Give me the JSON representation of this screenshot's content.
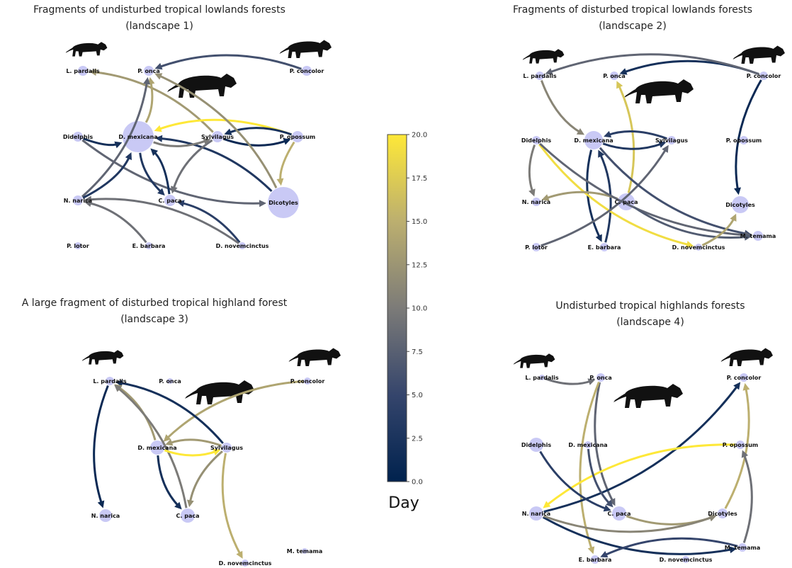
{
  "panels": [
    {
      "title": [
        "Fragments of undisturbed tropical lowlands forests",
        "(landscape 1)"
      ],
      "nodes": [
        "L. pardalis",
        "P. onca",
        "P. concolor",
        "Didelphis",
        "D. mexicana",
        "Sylvilagus",
        "P. opossum",
        "N. narica",
        "C. paca",
        "Dicotyles",
        "P. lotor",
        "E. barbara",
        "D. novemcinctus"
      ],
      "edges": [
        {
          "from": 2,
          "to": 1,
          "day": 6
        },
        {
          "from": 5,
          "to": 0,
          "day": 13
        },
        {
          "from": 4,
          "to": 1,
          "day": 14
        },
        {
          "from": 7,
          "to": 1,
          "day": 8
        },
        {
          "from": 6,
          "to": 4,
          "day": 20
        },
        {
          "from": 3,
          "to": 4,
          "day": 2
        },
        {
          "from": 5,
          "to": 6,
          "day": 1
        },
        {
          "from": 6,
          "to": 5,
          "day": 2
        },
        {
          "from": 6,
          "to": 9,
          "day": 15
        },
        {
          "from": 9,
          "to": 4,
          "day": 3
        },
        {
          "from": 3,
          "to": 9,
          "day": 8
        },
        {
          "from": 4,
          "to": 8,
          "day": 3
        },
        {
          "from": 8,
          "to": 4,
          "day": 2
        },
        {
          "from": 5,
          "to": 8,
          "day": 9
        },
        {
          "from": 7,
          "to": 4,
          "day": 3
        },
        {
          "from": 11,
          "to": 7,
          "day": 9
        },
        {
          "from": 12,
          "to": 8,
          "day": 4
        },
        {
          "from": 12,
          "to": 7,
          "day": 9
        },
        {
          "from": 4,
          "to": 5,
          "day": 10
        },
        {
          "from": 9,
          "to": 1,
          "day": 12
        }
      ]
    },
    {
      "title": [
        "Fragments of disturbed tropical lowlands forests",
        "(landscape 2)"
      ],
      "nodes": [
        "L. pardalis",
        "P. onca",
        "P. concolor",
        "Didelphis",
        "D. mexicana",
        "Sylvilagus",
        "P. opossum",
        "N. narica",
        "C. paca",
        "Dicotyles",
        "M. temama",
        "P. lotor",
        "E. barbara",
        "D. novemcinctus"
      ],
      "edges": [
        {
          "from": 2,
          "to": 1,
          "day": 2
        },
        {
          "from": 2,
          "to": 0,
          "day": 8
        },
        {
          "from": 0,
          "to": 4,
          "day": 11
        },
        {
          "from": 8,
          "to": 1,
          "day": 17
        },
        {
          "from": 2,
          "to": 9,
          "day": 1
        },
        {
          "from": 5,
          "to": 4,
          "day": 4
        },
        {
          "from": 4,
          "to": 5,
          "day": 3
        },
        {
          "from": 4,
          "to": 12,
          "day": 2
        },
        {
          "from": 12,
          "to": 4,
          "day": 3
        },
        {
          "from": 3,
          "to": 13,
          "day": 19
        },
        {
          "from": 3,
          "to": 7,
          "day": 10
        },
        {
          "from": 8,
          "to": 7,
          "day": 13
        },
        {
          "from": 11,
          "to": 5,
          "day": 8
        },
        {
          "from": 4,
          "to": 10,
          "day": 6
        },
        {
          "from": 3,
          "to": 10,
          "day": 8
        },
        {
          "from": 8,
          "to": 10,
          "day": 7
        },
        {
          "from": 13,
          "to": 9,
          "day": 14
        }
      ]
    },
    {
      "title": [
        "A large fragment of disturbed tropical highland forest",
        "(landscape 3)"
      ],
      "nodes": [
        "L. pardalis",
        "P. onca",
        "P. concolor",
        "D. mexicana",
        "Sylvilagus",
        "N. narica",
        "C. paca",
        "M. temama",
        "D. novemcinctus"
      ],
      "edges": [
        {
          "from": 0,
          "to": 5,
          "day": 1
        },
        {
          "from": 2,
          "to": 3,
          "day": 14
        },
        {
          "from": 4,
          "to": 0,
          "day": 2
        },
        {
          "from": 3,
          "to": 0,
          "day": 13
        },
        {
          "from": 6,
          "to": 0,
          "day": 10
        },
        {
          "from": 3,
          "to": 4,
          "day": 20
        },
        {
          "from": 3,
          "to": 6,
          "day": 2
        },
        {
          "from": 4,
          "to": 3,
          "day": 13
        },
        {
          "from": 4,
          "to": 6,
          "day": 12
        },
        {
          "from": 4,
          "to": 8,
          "day": 15
        }
      ]
    },
    {
      "title": [
        "Undisturbed tropical highlands forests",
        "(landscape 4)"
      ],
      "nodes": [
        "L. pardalis",
        "P. onca",
        "P. concolor",
        "Didelphis",
        "D. mexicana",
        "P. opossum",
        "N. narica",
        "C. paca",
        "Dicotyles",
        "M. temama",
        "E. barbara",
        "D. novemcinctus"
      ],
      "edges": [
        {
          "from": 0,
          "to": 1,
          "day": 9
        },
        {
          "from": 1,
          "to": 7,
          "day": 8
        },
        {
          "from": 1,
          "to": 10,
          "day": 15
        },
        {
          "from": 6,
          "to": 2,
          "day": 2
        },
        {
          "from": 5,
          "to": 6,
          "day": 20
        },
        {
          "from": 3,
          "to": 7,
          "day": 4
        },
        {
          "from": 4,
          "to": 7,
          "day": 6
        },
        {
          "from": 8,
          "to": 2,
          "day": 15
        },
        {
          "from": 7,
          "to": 8,
          "day": 13
        },
        {
          "from": 6,
          "to": 9,
          "day": 2
        },
        {
          "from": 9,
          "to": 10,
          "day": 5
        },
        {
          "from": 9,
          "to": 5,
          "day": 9
        },
        {
          "from": 6,
          "to": 8,
          "day": 11
        }
      ]
    }
  ],
  "colorbar": {
    "label": "Day",
    "lim": [
      0,
      20
    ],
    "ticks": [
      {
        "value": 0,
        "label": "0.0"
      },
      2.5,
      {
        "value": 5,
        "label": "5.0"
      },
      7.5,
      {
        "value": 10,
        "label": "10.0"
      },
      12.5,
      {
        "value": 15,
        "label": "15.0"
      },
      17.5,
      {
        "value": 20,
        "label": "20.0"
      }
    ],
    "colors": [
      "#00224e",
      "#35456c",
      "#7c7b78",
      "#bcaf6f",
      "#fee838"
    ]
  }
}
